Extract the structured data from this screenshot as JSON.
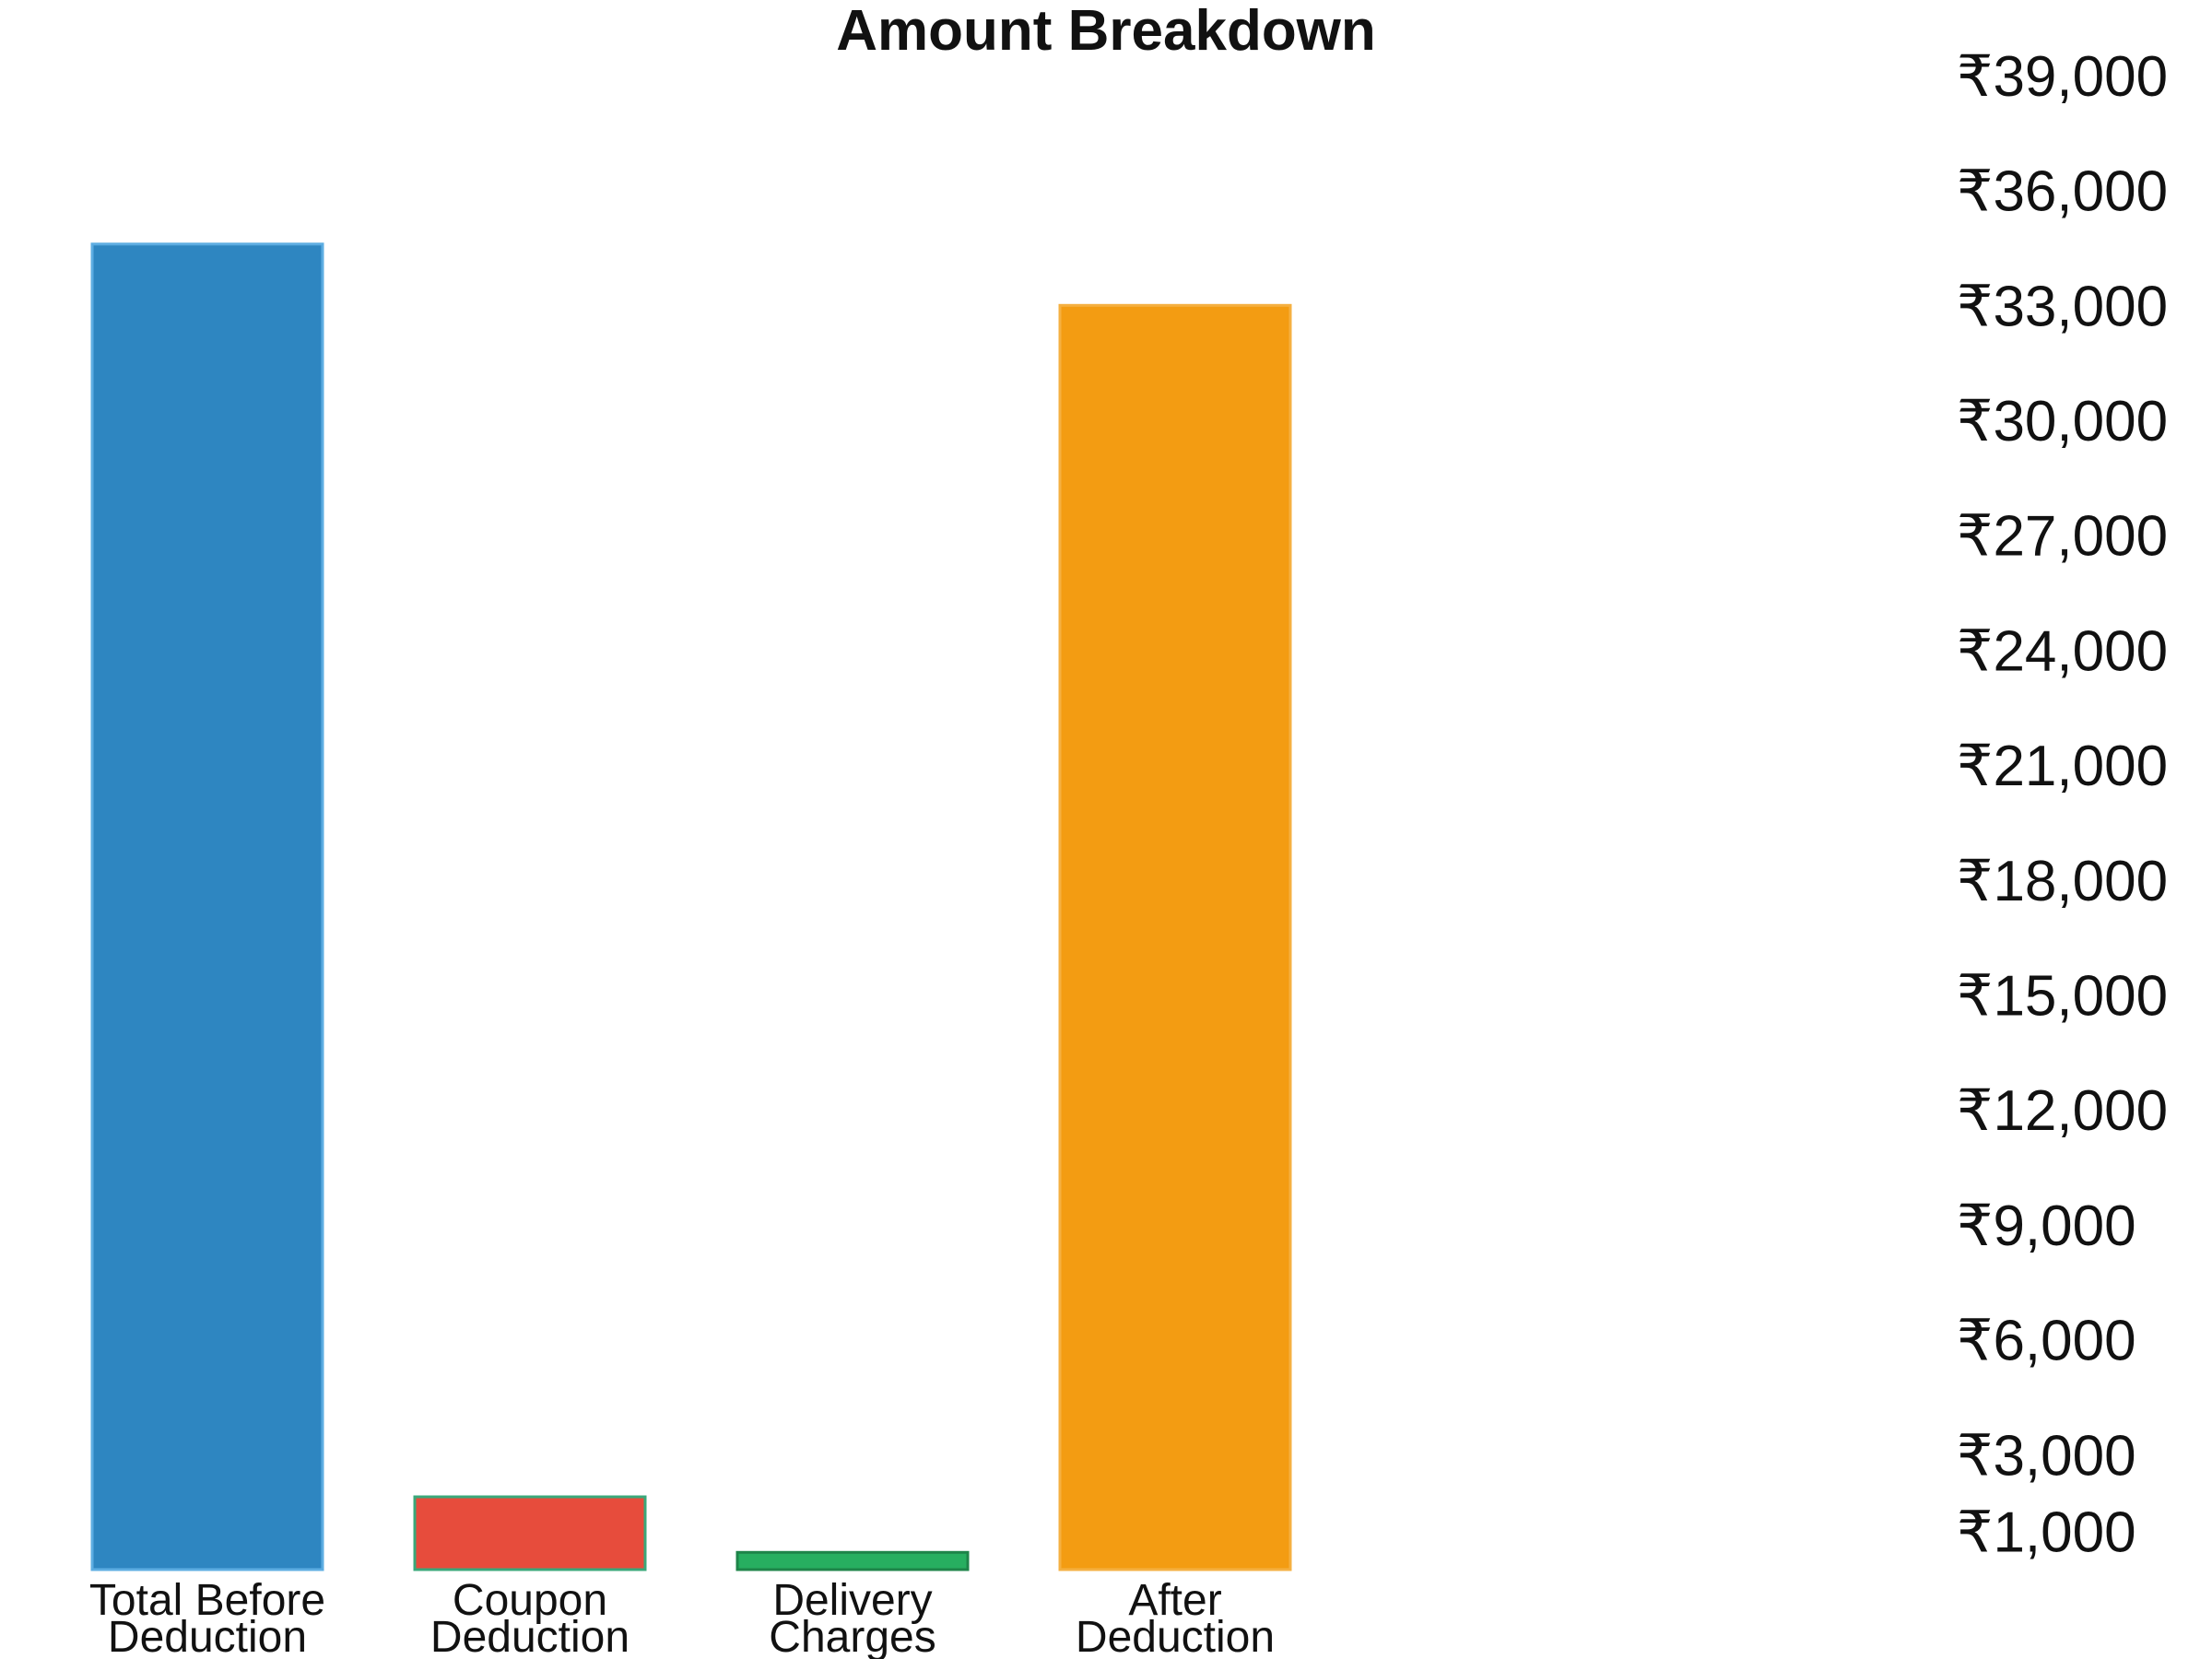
{
  "chart_data": {
    "type": "bar",
    "title": "Amount Breakdown",
    "xlabel": "",
    "ylabel": "",
    "ylim": [
      0,
      40000
    ],
    "y_ticks": [
      1000,
      3000,
      6000,
      9000,
      12000,
      15000,
      18000,
      21000,
      24000,
      27000,
      30000,
      33000,
      36000,
      39000
    ],
    "y_tick_labels": [
      "₹1,000",
      "₹3,000",
      "₹6,000",
      "₹9,000",
      "₹12,000",
      "₹15,000",
      "₹18,000",
      "₹21,000",
      "₹24,000",
      "₹27,000",
      "₹30,000",
      "₹33,000",
      "₹36,000",
      "₹39,000"
    ],
    "y_axis_position": "right",
    "grid": false,
    "categories": [
      "Total Before Deduction",
      "Coupon Deduction",
      "Delivery Charges",
      "After Deduction"
    ],
    "category_label_lines": [
      [
        "Total Before",
        "Deduction"
      ],
      [
        "Coupon",
        "Deduction"
      ],
      [
        "Delivery",
        "Charges"
      ],
      [
        "After",
        "Deduction"
      ]
    ],
    "values": [
      34600,
      1900,
      450,
      33000
    ],
    "colors": [
      "#2e86c1",
      "#e74c3c",
      "#27ae60",
      "#f39c12"
    ]
  }
}
